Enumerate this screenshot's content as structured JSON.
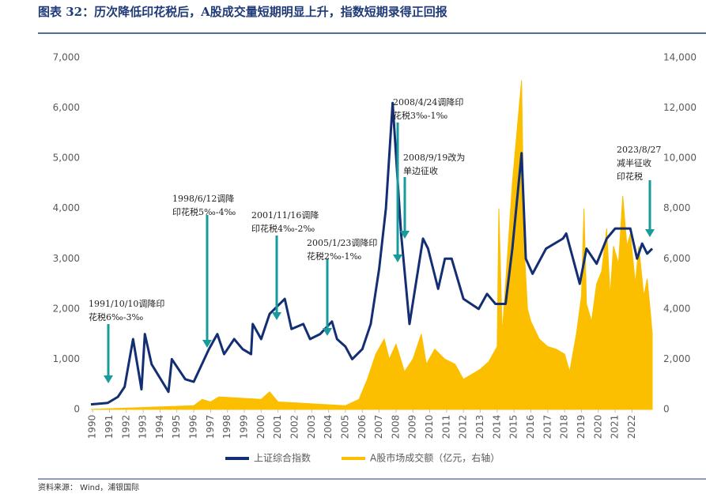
{
  "chart_data": {
    "type": "line",
    "title": "图表 32：历次降低印花税后，A股成交量短期明显上升，指数短期录得正回报",
    "source": "资料来源： Wind，浦银国际",
    "xlim": [
      1989.9,
      2023.2
    ],
    "xticks": [
      1990,
      1991,
      1992,
      1993,
      1994,
      1995,
      1996,
      1997,
      1998,
      1999,
      2000,
      2001,
      2002,
      2003,
      2004,
      2005,
      2006,
      2007,
      2008,
      2009,
      2010,
      2011,
      2012,
      2013,
      2014,
      2015,
      2016,
      2017,
      2018,
      2019,
      2020,
      2021,
      2022
    ],
    "ylim": [
      0,
      7000
    ],
    "yticks": [
      0,
      {
        "value": 1000,
        "label": "1,000"
      },
      {
        "value": 2000,
        "label": "2,000"
      },
      {
        "value": 3000,
        "label": "3,000"
      },
      {
        "value": 4000,
        "label": "4,000"
      },
      {
        "value": 5000,
        "label": "5,000"
      },
      {
        "value": 6000,
        "label": "6,000"
      },
      {
        "value": 7000,
        "label": "7,000"
      }
    ],
    "y2lim": [
      0,
      14000
    ],
    "y2ticks": [
      0,
      {
        "value": 2000,
        "label": "2,000"
      },
      {
        "value": 4000,
        "label": "4,000"
      },
      {
        "value": 6000,
        "label": "6,000"
      },
      {
        "value": 8000,
        "label": "8,000"
      },
      {
        "value": 10000,
        "label": "10,000"
      },
      {
        "value": 12000,
        "label": "12,000"
      },
      {
        "value": 14000,
        "label": "14,000"
      }
    ],
    "series": [
      {
        "name": "A股市场成交额（亿元，右轴）",
        "color": "#fbbf00",
        "axis": "y2",
        "fill": true,
        "x": [
          1989.9,
          1996.0,
          1996.5,
          1997.0,
          1997.5,
          2000.0,
          2000.5,
          2001.0,
          2005.0,
          2005.8,
          2006.3,
          2006.8,
          2007.3,
          2007.6,
          2008.0,
          2008.5,
          2009.0,
          2009.5,
          2009.8,
          2010.3,
          2010.9,
          2011.5,
          2012.0,
          2012.5,
          2013.0,
          2013.5,
          2014.0,
          2014.1,
          2014.3,
          2014.6,
          2014.9,
          2015.1,
          2015.3,
          2015.45,
          2015.6,
          2015.8,
          2016.0,
          2016.5,
          2017.0,
          2017.5,
          2018.0,
          2018.3,
          2018.7,
          2019.0,
          2019.15,
          2019.3,
          2019.6,
          2019.9,
          2020.2,
          2020.5,
          2020.7,
          2020.9,
          2021.2,
          2021.45,
          2021.7,
          2021.9,
          2022.2,
          2022.4,
          2022.7,
          2022.9,
          2023.1,
          2023.2
        ],
        "values": [
          0,
          150,
          400,
          300,
          500,
          400,
          700,
          300,
          150,
          400,
          1200,
          2200,
          2800,
          2000,
          2600,
          1500,
          2000,
          3000,
          1800,
          2400,
          2000,
          1800,
          1200,
          1400,
          1600,
          1900,
          2500,
          8000,
          3000,
          6000,
          9000,
          10500,
          12000,
          13100,
          6500,
          4000,
          3500,
          2800,
          2500,
          2400,
          2200,
          1500,
          3000,
          4500,
          8000,
          4200,
          3500,
          5000,
          5500,
          7200,
          4500,
          6500,
          5800,
          8500,
          6500,
          7000,
          5000,
          6500,
          4500,
          5200,
          3800,
          3000
        ]
      },
      {
        "name": "上证综合指数",
        "color": "#132e72",
        "x": [
          1989.9,
          1990.9,
          1991.5,
          1991.9,
          1992.4,
          1992.9,
          1993.1,
          1993.5,
          1994.5,
          1994.7,
          1995.5,
          1996.0,
          1996.9,
          1997.4,
          1997.8,
          1998.4,
          1998.9,
          1999.4,
          1999.5,
          2000.0,
          2000.5,
          2001.4,
          2001.8,
          2002.5,
          2002.9,
          2003.5,
          2004.2,
          2004.5,
          2005.0,
          2005.4,
          2006.0,
          2006.5,
          2007.0,
          2007.4,
          2007.8,
          2008.3,
          2008.8,
          2009.6,
          2009.9,
          2010.5,
          2010.9,
          2011.3,
          2012.0,
          2012.9,
          2013.4,
          2013.9,
          2014.5,
          2014.9,
          2015.45,
          2015.7,
          2016.1,
          2016.9,
          2017.9,
          2018.1,
          2018.9,
          2019.3,
          2019.9,
          2020.5,
          2021.0,
          2021.9,
          2022.3,
          2022.6,
          2022.9,
          2023.2
        ],
        "values": [
          100,
          130,
          250,
          450,
          1400,
          400,
          1500,
          900,
          350,
          1000,
          600,
          550,
          1200,
          1500,
          1100,
          1400,
          1200,
          1100,
          1700,
          1400,
          1900,
          2200,
          1600,
          1700,
          1400,
          1500,
          1750,
          1400,
          1250,
          1000,
          1200,
          1700,
          2800,
          4000,
          6100,
          3500,
          1700,
          3400,
          3200,
          2400,
          3000,
          3000,
          2200,
          2000,
          2300,
          2100,
          2100,
          3200,
          5100,
          3000,
          2700,
          3200,
          3400,
          3500,
          2500,
          3200,
          2900,
          3400,
          3600,
          3600,
          3000,
          3300,
          3100,
          3200
        ]
      }
    ],
    "annotations": [
      [
        "1991/10/10调降印",
        "花税6‰-3‰"
      ],
      [
        "1998/6/12调降",
        "印花税5‰-4‰"
      ],
      [
        "2001/11/16调降",
        "印花税4‰-2‰"
      ],
      [
        "2005/1/23调降印",
        "花税2‰-1‰"
      ],
      [
        "2008/4/24调降印",
        "花税3‰-1‰"
      ],
      [
        "2008/9/19改为",
        "单边征收"
      ],
      [
        "2023/8/27",
        "减半征收",
        "印花税"
      ]
    ]
  }
}
